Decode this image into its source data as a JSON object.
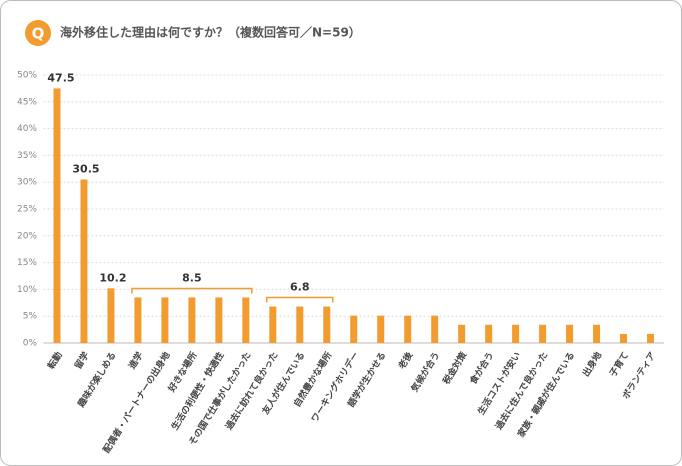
{
  "chart_data": {
    "type": "bar",
    "badge": "Q",
    "title": "海外移住した理由は何ですか？（複数回答可／N=59）",
    "categories": [
      "転勤",
      "留学",
      "趣味が楽しめる",
      "進学",
      "配偶者・パートナーの出身地",
      "好きな場所",
      "生活の利便性・快適性",
      "その国で仕事がしたかった",
      "過去に訪れて良かった",
      "友人が住んでいる",
      "自然豊かな場所",
      "ワーキングホリデー",
      "語学が生かせる",
      "老後",
      "気候が合う",
      "税金対策",
      "食が合う",
      "生活コストが安い",
      "過去に住んで良かった",
      "家族・親戚が住んでいる",
      "出身地",
      "子育て",
      "ボランティア"
    ],
    "values": [
      47.5,
      30.5,
      10.2,
      8.5,
      8.5,
      8.5,
      8.5,
      8.5,
      6.8,
      6.8,
      6.8,
      5.1,
      5.1,
      5.1,
      5.1,
      3.4,
      3.4,
      3.4,
      3.4,
      3.4,
      3.4,
      1.7,
      1.7
    ],
    "color": "#f29b2f",
    "ylim": [
      0,
      50
    ],
    "yticks": [
      {
        "value": 0,
        "label": "0%"
      },
      {
        "value": 5,
        "label": "5%"
      },
      {
        "value": 10,
        "label": "10%"
      },
      {
        "value": 15,
        "label": "15%"
      },
      {
        "value": 20,
        "label": "20%"
      },
      {
        "value": 25,
        "label": "25%"
      },
      {
        "value": 30,
        "label": "30%"
      },
      {
        "value": 35,
        "label": "35%"
      },
      {
        "value": 40,
        "label": "40%"
      },
      {
        "value": 45,
        "label": "45%"
      },
      {
        "value": 50,
        "label": "50%"
      }
    ],
    "grid": true
  }
}
